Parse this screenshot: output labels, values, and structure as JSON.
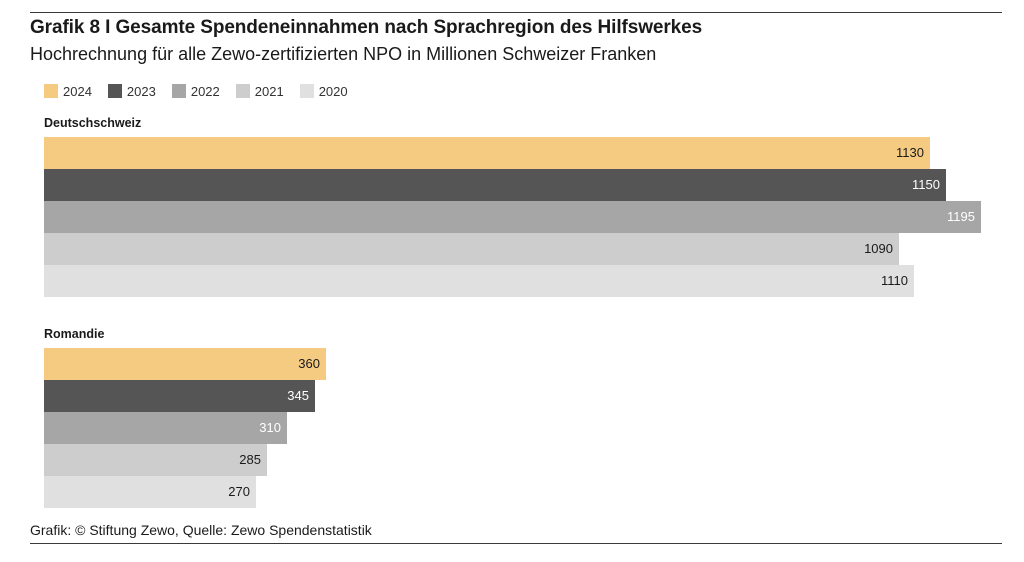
{
  "chart_data": {
    "type": "bar",
    "orientation": "horizontal",
    "title": "Grafik 8 I Gesamte Spendeneinnahmen nach Sprachregion des Hilfswerkes",
    "subtitle": "Hochrechnung für alle Zewo-zertifizierten NPO in Millionen Schweizer Franken",
    "legend_position": "top-left",
    "xlim": [
      0,
      1200
    ],
    "series": [
      {
        "name": "2024",
        "color": "#f5cb82",
        "label_color": "#1a1a1a"
      },
      {
        "name": "2023",
        "color": "#555555",
        "label_color": "#ffffff"
      },
      {
        "name": "2022",
        "color": "#a6a6a6",
        "label_color": "#ffffff"
      },
      {
        "name": "2021",
        "color": "#cdcdcd",
        "label_color": "#1a1a1a"
      },
      {
        "name": "2020",
        "color": "#e0e0e0",
        "label_color": "#1a1a1a"
      }
    ],
    "groups": [
      {
        "name": "Deutschschweiz",
        "values": [
          1130,
          1150,
          1195,
          1090,
          1110
        ]
      },
      {
        "name": "Romandie",
        "values": [
          360,
          345,
          310,
          285,
          270
        ]
      }
    ],
    "source": "Grafik: © Stiftung Zewo, Quelle: Zewo Spendenstatistik"
  }
}
